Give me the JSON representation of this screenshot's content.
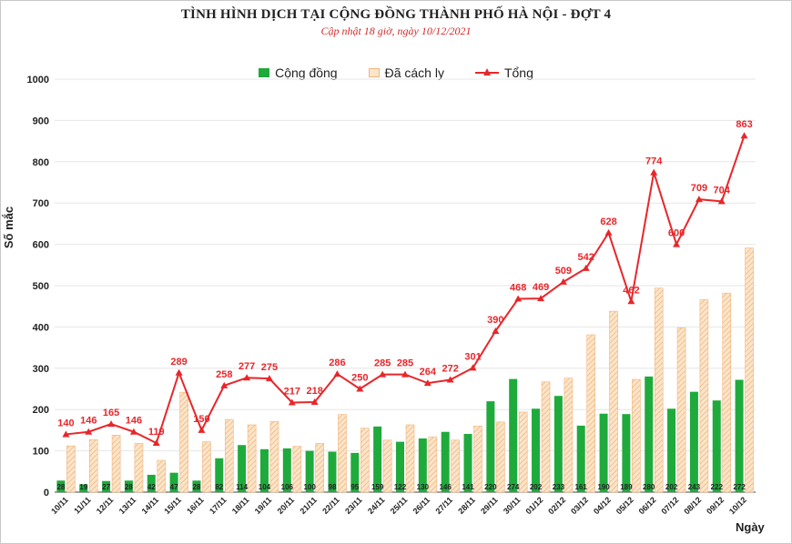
{
  "header": {
    "title": "TÌNH HÌNH DỊCH TẠI CỘNG ĐỒNG THÀNH PHỐ HÀ NỘI - ĐỢT 4",
    "subtitle": "Cập nhật 18 giờ, ngày 10/12/2021"
  },
  "legend": {
    "community": "Cộng đồng",
    "isolated": "Đã cách ly",
    "total": "Tổng"
  },
  "colors": {
    "community": "#1faa3c",
    "isolated_fill": "#fbe6cc",
    "isolated_hatch": "#f2b47a",
    "total": "#e8262a"
  },
  "chart_data": {
    "type": "bar",
    "title": "TÌNH HÌNH DỊCH TẠI CỘNG ĐỒNG THÀNH PHỐ HÀ NỘI - ĐỢT 4",
    "subtitle": "Cập nhật 18 giờ, ngày 10/12/2021",
    "xlabel": "Ngày",
    "ylabel": "Số mắc",
    "ylim": [
      0,
      1000
    ],
    "yticks": [
      0,
      100,
      200,
      300,
      400,
      500,
      600,
      700,
      800,
      900,
      1000
    ],
    "legend_position": "top",
    "categories": [
      "10/11",
      "11/11",
      "12/11",
      "13/11",
      "14/11",
      "15/11",
      "16/11",
      "17/11",
      "18/11",
      "19/11",
      "20/11",
      "21/11",
      "22/11",
      "23/11",
      "24/11",
      "25/11",
      "26/11",
      "27/11",
      "28/11",
      "29/11",
      "30/11",
      "01/12",
      "02/12",
      "03/12",
      "04/12",
      "05/12",
      "06/12",
      "07/12",
      "08/12",
      "09/12",
      "10/12"
    ],
    "series": [
      {
        "name": "Cộng đồng",
        "type": "bar",
        "values": [
          28,
          19,
          27,
          28,
          42,
          47,
          28,
          82,
          114,
          104,
          106,
          100,
          98,
          95,
          159,
          122,
          130,
          146,
          141,
          220,
          274,
          202,
          233,
          161,
          190,
          189,
          280,
          202,
          243,
          222,
          272
        ]
      },
      {
        "name": "Đã cách ly",
        "type": "bar",
        "values": [
          112,
          127,
          138,
          118,
          77,
          242,
          122,
          176,
          163,
          171,
          111,
          118,
          188,
          155,
          126,
          163,
          134,
          126,
          160,
          170,
          194,
          267,
          276,
          381,
          438,
          273,
          494,
          398,
          466,
          482,
          591
        ]
      },
      {
        "name": "Tổng",
        "type": "line",
        "values": [
          140,
          146,
          165,
          146,
          119,
          289,
          150,
          258,
          277,
          275,
          217,
          218,
          286,
          250,
          285,
          285,
          264,
          272,
          301,
          390,
          468,
          469,
          509,
          542,
          628,
          462,
          774,
          600,
          709,
          704,
          863
        ]
      }
    ]
  }
}
